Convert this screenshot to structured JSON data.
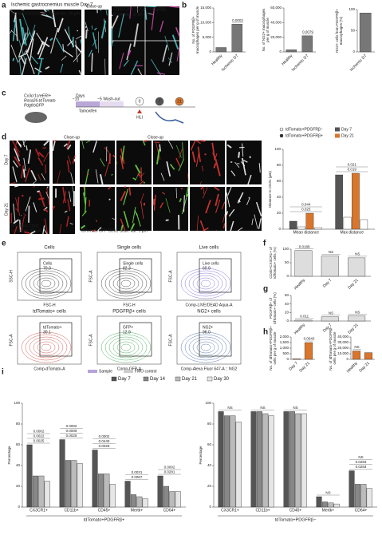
{
  "panels": {
    "a": {
      "letter": "a",
      "title": "Ischemic gastrocnemius muscle Day 7",
      "stain1": "CD31 CX3CR1GFP",
      "scale1": "Scale bar: 20 µm",
      "closeup": "Close-up",
      "stain2": "CD31 CX3CR1GFP PDGFRβ",
      "scale2": "Scale bar: 10 µm"
    },
    "b": {
      "letter": "b"
    },
    "c": {
      "letter": "c",
      "mouse": [
        "Cx3cr1creER/+",
        "Rosa26-tdTomato",
        "PdgfrbGFP"
      ],
      "days": "Days",
      "timeline": [
        "−10",
        "−5"
      ],
      "tamoxifen": "Tamoxifen",
      "washout": "Wash-out",
      "timepoints": [
        "0",
        "7",
        "21"
      ],
      "hli": "HLI"
    },
    "d": {
      "letter": "d",
      "closeup1": "Close-up",
      "closeup2": "Close-up",
      "rows": [
        "Day 7",
        "Day 21"
      ],
      "stain1": "tdTomato CD31",
      "scale1": "Scale bar: 10 µm",
      "stain2": "tdTomato GFP CD31 Scale bar: 5 µm"
    },
    "e": {
      "letter": "e",
      "plots": [
        {
          "title": "Cells",
          "gate": "Cells",
          "pct": "70.0",
          "x": "FSC-H",
          "y": "SSC-H"
        },
        {
          "title": "Single cells",
          "gate": "Single cells",
          "pct": "82.3",
          "x": "FSC-H",
          "y": "FSC-A"
        },
        {
          "title": "Live cells",
          "gate": "Live cells",
          "pct": "60.9",
          "x": "Comp-LIVE/DEAD Aqua-A",
          "y": "FSC-A"
        },
        {
          "title": "tdTomato+ cells",
          "gate": "tdTomato+",
          "pct": "30.1",
          "x": "Comp-dTomato-A",
          "y": "FSC-A"
        },
        {
          "title": "PDGFRβ+ cells",
          "gate": "GFP+",
          "pct": "12.9",
          "x": "Comp-GFP-A",
          "y": "FSC-A"
        },
        {
          "title": "NG2+ cells",
          "gate": "NG2+",
          "pct": "96.0",
          "x": "Comp-Alexa Fluor 647-A :: NG2",
          "y": "FSC-A"
        }
      ],
      "legend": [
        "Sample",
        "FMO control"
      ]
    },
    "f": {
      "letter": "f"
    },
    "g": {
      "letter": "g"
    },
    "h": {
      "letter": "h"
    },
    "i": {
      "letter": "i"
    }
  },
  "chart_data": [
    {
      "type": "bar",
      "ylabel": [
        "No. of PDGFRβ+",
        "macrophages per g of muscle"
      ],
      "categories": [
        "Healthy",
        "Ischemic D7"
      ],
      "series": [
        {
          "color": "#777777",
          "values": [
            1500,
            9500
          ]
        }
      ],
      "ylim": [
        0,
        15000
      ],
      "yticks": [
        0,
        {
          "value": 5000,
          "label": "5,000"
        },
        {
          "value": 10000,
          "label": "10,000"
        },
        {
          "value": 15000,
          "label": "15,000"
        }
      ],
      "annotations": [
        null,
        "0.0002"
      ]
    },
    {
      "type": "bar",
      "ylabel": [
        "No. of NG2+ macrophages",
        "per g of muscle"
      ],
      "categories": [
        "Healthy",
        "Ischemic D7"
      ],
      "series": [
        {
          "color": "#777777",
          "values": [
            3000,
            22000
          ]
        }
      ],
      "ylim": [
        0,
        60000
      ],
      "yticks": [
        0,
        {
          "value": 20000,
          "label": "20,000"
        },
        {
          "value": 40000,
          "label": "40,000"
        },
        {
          "value": 60000,
          "label": "60,000"
        }
      ],
      "annotations": [
        null,
        "0.0079"
      ]
    },
    {
      "type": "bar",
      "ylabel": [
        "NG2+ cells from PDGFRβ+",
        "macrophages (%)"
      ],
      "categories": [
        "Ischemic D7"
      ],
      "series": [
        {
          "color": "#777777",
          "values": [
            92
          ]
        }
      ],
      "ylim": [
        0,
        100
      ],
      "yticks": [
        0,
        50,
        100
      ]
    },
    {
      "type": "bar",
      "ylabel": [
        "Distance to CD31 (µm)"
      ],
      "categories": [
        "Mean distance",
        "Max distance"
      ],
      "series": [
        {
          "color": "#555555",
          "values": [
            10,
            68
          ]
        },
        {
          "color": "#ffffff",
          "values": [
            3,
            15
          ]
        },
        {
          "color": "#d9762b",
          "values": [
            20,
            70
          ]
        },
        {
          "color": "#ffffff",
          "values": [
            2,
            12
          ]
        }
      ],
      "ylim": [
        0,
        100
      ],
      "yticks": [
        0,
        20,
        40,
        60,
        80,
        100
      ],
      "annotations": [
        [
          "0.025",
          "0.044"
        ],
        [
          "0.019",
          "0.021"
        ]
      ],
      "legend": [
        {
          "label": "tdTomato+PDGFRβ−",
          "color": "#ffffff"
        },
        {
          "label": "tdTomato+PDGFRβ+",
          "color": "#333333"
        },
        {
          "label": "Day 7",
          "color": "#555555"
        },
        {
          "label": "Day 21",
          "color": "#d9762b"
        }
      ]
    },
    {
      "type": "bar",
      "ylabel": [
        "CD45+CX3CR1+ of",
        "tdTomato+ cells (%)"
      ],
      "categories": [
        "Healthy",
        "Day 7",
        "Day 21"
      ],
      "series": [
        {
          "color": "#dddddd",
          "values": [
            95,
            75,
            68
          ]
        }
      ],
      "ylim": [
        0,
        100
      ],
      "yticks": [
        0,
        50,
        100
      ],
      "annotations": [
        "0.0189",
        "NS",
        "NS"
      ]
    },
    {
      "type": "bar",
      "ylabel": [
        "PDGFRβ+ of",
        "tdTomato+ cells (%)"
      ],
      "categories": [
        "Healthy",
        "Day 7",
        "Day 21"
      ],
      "series": [
        {
          "color": "#dddddd",
          "values": [
            2,
            10,
            12
          ]
        }
      ],
      "ylim": [
        0,
        60
      ],
      "yticks": [
        0,
        20,
        40,
        60
      ],
      "annotations": [
        "0.011",
        "NS",
        "NS"
      ]
    },
    {
      "type": "bar",
      "ylabel": [
        "No. of tdTomato+PDGFRβ+",
        "cells per g of muscle"
      ],
      "categories": [
        "Day 7",
        "Day 21"
      ],
      "series": [
        {
          "color": "#d9762b",
          "values": [
            50,
            1500
          ]
        }
      ],
      "ylim": [
        0,
        2000
      ],
      "yticks": [
        0,
        500,
        {
          "value": 1000,
          "label": "1,000"
        },
        {
          "value": 1500,
          "label": "1,500"
        },
        {
          "value": 2000,
          "label": "2,000"
        }
      ],
      "annotations": [
        null,
        "0.0043"
      ]
    },
    {
      "type": "bar",
      "ylabel": [
        "No. of tdTomato+PDGFRβ−",
        "cells per g of muscle"
      ],
      "categories": [
        "Healthy",
        "Day 21"
      ],
      "series": [
        {
          "color": "#d9762b",
          "values": [
            15000,
            12000
          ]
        }
      ],
      "ylim": [
        0,
        40000
      ],
      "yticks": [
        0,
        {
          "value": 10000,
          "label": "10,000"
        },
        {
          "value": 20000,
          "label": "20,000"
        },
        {
          "value": 30000,
          "label": "30,000"
        },
        {
          "value": 40000,
          "label": "40,000"
        }
      ],
      "annotations": [
        "NS",
        null
      ]
    },
    {
      "type": "bar",
      "ylabel": [
        "Percentage"
      ],
      "xlabel": "tdTomato+PDGFRβ+",
      "categories": [
        "CX3CR1+",
        "CD11b+",
        "CD45+",
        "Mertk+",
        "CD64+"
      ],
      "series": [
        {
          "name": "Day 7",
          "color": "#555555",
          "values": [
            60,
            65,
            55,
            25,
            30
          ]
        },
        {
          "name": "Day 14",
          "color": "#888888",
          "values": [
            30,
            45,
            32,
            12,
            20
          ]
        },
        {
          "name": "Day 21",
          "color": "#bbbbbb",
          "values": [
            30,
            45,
            32,
            10,
            15
          ]
        },
        {
          "name": "Day 30",
          "color": "#e6e6e6",
          "values": [
            25,
            42,
            22,
            8,
            15
          ]
        }
      ],
      "ylim": [
        0,
        100
      ],
      "yticks": [
        0,
        20,
        40,
        60,
        80,
        100
      ],
      "annotations": [
        [
          "0.0025",
          "0.0022",
          "0.0002"
        ],
        [
          "0.0025",
          "0.0009",
          "0.0002"
        ],
        [
          "0.0025",
          "0.0440",
          "0.0002"
        ],
        [
          "0.0067",
          "0.0031"
        ],
        [
          "0.0281",
          "0.0002"
        ]
      ]
    },
    {
      "type": "bar",
      "ylabel": [
        "Percentage"
      ],
      "xlabel": "tdTomato+PDGFRβ−",
      "categories": [
        "CX3CR1+",
        "CD11b+",
        "CD45+",
        "Mertk+",
        "CD64+"
      ],
      "series": [
        {
          "color": "#555555",
          "values": [
            92,
            92,
            92,
            10,
            35
          ]
        },
        {
          "color": "#888888",
          "values": [
            88,
            92,
            92,
            5,
            22
          ]
        },
        {
          "color": "#bbbbbb",
          "values": [
            88,
            90,
            90,
            4,
            22
          ]
        },
        {
          "color": "#e6e6e6",
          "values": [
            82,
            88,
            90,
            3,
            18
          ]
        }
      ],
      "ylim": [
        0,
        100
      ],
      "yticks": [
        0,
        20,
        40,
        60,
        80,
        100
      ],
      "annotations": [
        [
          "NS"
        ],
        [
          "NS"
        ],
        [
          "NS"
        ],
        [
          "NS"
        ],
        [
          "0.0283",
          "0.0283",
          "NS"
        ]
      ]
    }
  ]
}
